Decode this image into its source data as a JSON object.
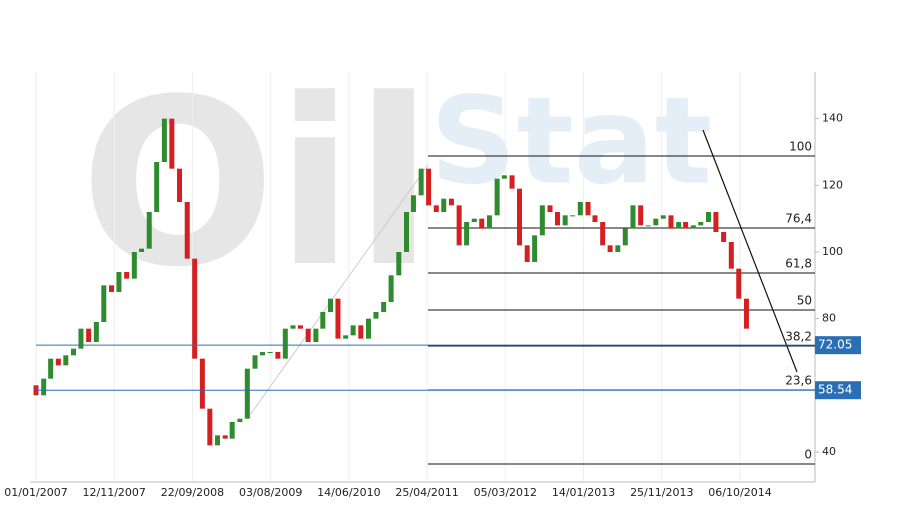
{
  "chart_data": {
    "type": "candlestick",
    "watermark": [
      "Oil",
      "Stat"
    ],
    "x": [
      "01/01/2007",
      "01/02/2007",
      "01/03/2007",
      "01/04/2007",
      "01/05/2007",
      "01/06/2007",
      "01/07/2007",
      "01/08/2007",
      "01/09/2007",
      "01/10/2007",
      "01/11/2007",
      "01/12/2007",
      "01/01/2008",
      "01/02/2008",
      "01/03/2008",
      "01/04/2008",
      "01/05/2008",
      "01/06/2008",
      "01/07/2008",
      "01/08/2008",
      "01/09/2008",
      "01/10/2008",
      "01/11/2008",
      "01/12/2008",
      "01/01/2009",
      "01/02/2009",
      "01/03/2009",
      "01/04/2009",
      "01/05/2009",
      "01/06/2009",
      "01/07/2009",
      "01/08/2009",
      "01/09/2009",
      "01/10/2009",
      "01/11/2009",
      "01/12/2009",
      "01/01/2010",
      "01/02/2010",
      "01/03/2010",
      "01/04/2010",
      "01/05/2010",
      "01/06/2010",
      "01/07/2010",
      "01/08/2010",
      "01/09/2010",
      "01/10/2010",
      "01/11/2010",
      "01/12/2010",
      "01/01/2011",
      "01/02/2011",
      "01/03/2011",
      "01/04/2011",
      "01/05/2011",
      "01/06/2011",
      "01/07/2011",
      "01/08/2011",
      "01/09/2011",
      "01/10/2011",
      "01/11/2011",
      "01/12/2011",
      "01/01/2012",
      "01/02/2012",
      "01/03/2012",
      "01/04/2012",
      "01/05/2012",
      "01/06/2012",
      "01/07/2012",
      "01/08/2012",
      "01/09/2012",
      "01/10/2012",
      "01/11/2012",
      "01/12/2012",
      "01/01/2013",
      "01/02/2013",
      "01/03/2013",
      "01/04/2013",
      "01/05/2013",
      "01/06/2013",
      "01/07/2013",
      "01/08/2013",
      "01/09/2013",
      "01/10/2013",
      "01/11/2013",
      "01/12/2013",
      "01/01/2014",
      "01/02/2014",
      "01/03/2014",
      "01/04/2014",
      "01/05/2014",
      "01/06/2014",
      "01/07/2014",
      "01/08/2014",
      "01/09/2014",
      "01/10/2014",
      "01/11/2014"
    ],
    "open": [
      60,
      57,
      62,
      68,
      66,
      69,
      71,
      77,
      73,
      79,
      90,
      88,
      94,
      92,
      100,
      101,
      112,
      127,
      140,
      125,
      115,
      98,
      68,
      53,
      42,
      45,
      44,
      49,
      50,
      65,
      69,
      70,
      70,
      68,
      77,
      78,
      77,
      73,
      77,
      82,
      86,
      74,
      75,
      78,
      74,
      80,
      82,
      85,
      93,
      100,
      112,
      117,
      125,
      114,
      112,
      116,
      114,
      102,
      109,
      110,
      107,
      111,
      122,
      123,
      119,
      102,
      97,
      105,
      114,
      112,
      108,
      111,
      111,
      115,
      111,
      109,
      102,
      100,
      102,
      107,
      114,
      108,
      108,
      110,
      111,
      107,
      109,
      107,
      108,
      109,
      112,
      106,
      103,
      95,
      86
    ],
    "close": [
      57,
      62,
      68,
      66,
      69,
      71,
      77,
      73,
      79,
      90,
      88,
      94,
      92,
      100,
      101,
      112,
      127,
      140,
      125,
      115,
      98,
      68,
      53,
      42,
      45,
      44,
      49,
      50,
      65,
      69,
      70,
      70,
      68,
      77,
      78,
      77,
      73,
      77,
      82,
      86,
      74,
      75,
      78,
      74,
      80,
      82,
      85,
      93,
      100,
      112,
      117,
      125,
      114,
      112,
      116,
      114,
      102,
      109,
      110,
      107,
      111,
      122,
      123,
      119,
      102,
      97,
      105,
      114,
      112,
      108,
      111,
      111,
      115,
      111,
      109,
      102,
      100,
      102,
      107,
      114,
      108,
      108,
      110,
      111,
      107,
      109,
      107,
      108,
      109,
      112,
      106,
      103,
      95,
      86,
      77
    ],
    "up_color": "#2e8b2e",
    "down_color": "#d42020",
    "xticks": [
      "01/01/2007",
      "12/11/2007",
      "22/09/2008",
      "03/08/2009",
      "14/06/2010",
      "25/04/2011",
      "05/03/2012",
      "14/01/2013",
      "25/11/2013",
      "06/10/2014"
    ],
    "ylim": [
      31,
      154
    ],
    "yticks": [
      40,
      80,
      100,
      120,
      140
    ],
    "price_lines": [
      72.05,
      58.54
    ],
    "price_line_color": "#2a6fb5",
    "fib_levels": [
      {
        "label": "100",
        "value": 128.8
      },
      {
        "label": "76,4",
        "value": 107.2
      },
      {
        "label": "61,8",
        "value": 93.7
      },
      {
        "label": "50",
        "value": 82.6
      },
      {
        "label": "38,2",
        "value": 71.8
      },
      {
        "label": "23,6",
        "value": 58.6
      },
      {
        "label": "0",
        "value": 36.4
      }
    ],
    "grid": true
  }
}
